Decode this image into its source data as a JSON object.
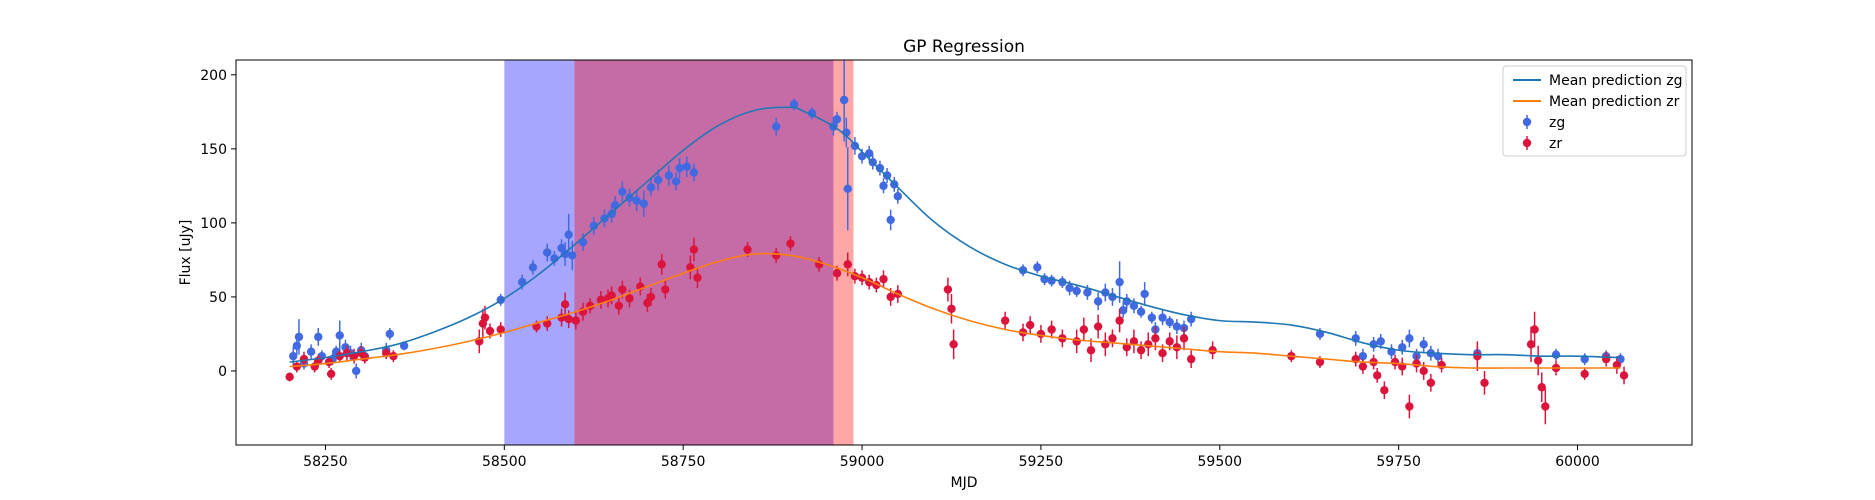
{
  "chart_data": {
    "type": "scatter",
    "title": "GP Regression",
    "xlabel": "MJD",
    "ylabel": "Flux [uJy]",
    "xlim": [
      58125,
      60160
    ],
    "ylim": [
      -50,
      210
    ],
    "xticks": [
      58250,
      58500,
      58750,
      59000,
      59250,
      59500,
      59750,
      60000
    ],
    "yticks": [
      0,
      50,
      100,
      150,
      200
    ],
    "grid": false,
    "legend": {
      "position": "top-right",
      "entries": [
        "Mean prediction zg",
        "Mean prediction zr",
        "zg",
        "zr"
      ]
    },
    "shaded_regions": [
      {
        "x_start": 58500,
        "x_end": 58960,
        "color": "#0000ff",
        "opacity": 0.35
      },
      {
        "x_start": 58598,
        "x_end": 58988,
        "color": "#ff0000",
        "opacity": 0.35
      }
    ],
    "series": [
      {
        "name": "Mean prediction zg",
        "kind": "line",
        "color": "#1f77b4",
        "x": [
          58200,
          58250,
          58300,
          58350,
          58400,
          58450,
          58500,
          58550,
          58600,
          58650,
          58700,
          58750,
          58800,
          58850,
          58900,
          58920,
          58950,
          58975,
          59000,
          59050,
          59100,
          59150,
          59200,
          59250,
          59300,
          59350,
          59400,
          59450,
          59500,
          59550,
          59600,
          59650,
          59700,
          59750,
          59800,
          59850,
          59900,
          59950,
          60000,
          60060
        ],
        "y": [
          6,
          9,
          13,
          18,
          26,
          36,
          49,
          66,
          86,
          107,
          128,
          149,
          166,
          176,
          178,
          175,
          168,
          160,
          148,
          124,
          101,
          84,
          72,
          64,
          58,
          51,
          44,
          38,
          34,
          33,
          31,
          26,
          19,
          14,
          12,
          11,
          11,
          10,
          10,
          9
        ]
      },
      {
        "name": "Mean prediction zr",
        "kind": "line",
        "color": "#ff7f0e",
        "x": [
          58200,
          58250,
          58300,
          58350,
          58400,
          58450,
          58500,
          58550,
          58600,
          58650,
          58700,
          58750,
          58800,
          58850,
          58900,
          58950,
          59000,
          59050,
          59100,
          59150,
          59200,
          59250,
          59300,
          59350,
          59400,
          59450,
          59500,
          59550,
          59600,
          59650,
          59700,
          59750,
          59800,
          59850,
          59900,
          59950,
          60000,
          60060
        ],
        "y": [
          3,
          5,
          8,
          11,
          15,
          20,
          26,
          33,
          40,
          48,
          57,
          66,
          74,
          79,
          78,
          72,
          63,
          52,
          42,
          34,
          28,
          24,
          21,
          19,
          17,
          15,
          13,
          12,
          10,
          8,
          6,
          5,
          3,
          2,
          2,
          2,
          2,
          2
        ]
      },
      {
        "name": "zg",
        "kind": "errorbar",
        "color": "#4169e1",
        "points": [
          [
            58205,
            10,
            6
          ],
          [
            58210,
            17,
            6
          ],
          [
            58213,
            23,
            12
          ],
          [
            58220,
            5,
            4
          ],
          [
            58230,
            13,
            5
          ],
          [
            58240,
            23,
            6
          ],
          [
            58245,
            10,
            4
          ],
          [
            58260,
            8,
            4
          ],
          [
            58265,
            13,
            4
          ],
          [
            58270,
            24,
            10
          ],
          [
            58278,
            16,
            5
          ],
          [
            58285,
            12,
            5
          ],
          [
            58293,
            0,
            5
          ],
          [
            58300,
            14,
            5
          ],
          [
            58305,
            10,
            4
          ],
          [
            58335,
            14,
            5
          ],
          [
            58340,
            25,
            4
          ],
          [
            58360,
            17,
            3
          ],
          [
            58495,
            48,
            4
          ],
          [
            58525,
            60,
            5
          ],
          [
            58540,
            70,
            5
          ],
          [
            58560,
            80,
            6
          ],
          [
            58570,
            76,
            5
          ],
          [
            58580,
            83,
            6
          ],
          [
            58585,
            79,
            8
          ],
          [
            58590,
            92,
            14
          ],
          [
            58595,
            78,
            10
          ],
          [
            58610,
            87,
            6
          ],
          [
            58625,
            98,
            6
          ],
          [
            58640,
            103,
            6
          ],
          [
            58650,
            106,
            6
          ],
          [
            58655,
            112,
            6
          ],
          [
            58665,
            121,
            7
          ],
          [
            58675,
            117,
            6
          ],
          [
            58685,
            115,
            7
          ],
          [
            58695,
            113,
            9
          ],
          [
            58705,
            124,
            6
          ],
          [
            58715,
            129,
            7
          ],
          [
            58730,
            132,
            7
          ],
          [
            58740,
            128,
            6
          ],
          [
            58745,
            137,
            7
          ],
          [
            58755,
            138,
            7
          ],
          [
            58765,
            134,
            6
          ],
          [
            58880,
            165,
            6
          ],
          [
            58905,
            180,
            4
          ],
          [
            58930,
            174,
            4
          ],
          [
            58960,
            165,
            6
          ],
          [
            58965,
            170,
            5
          ],
          [
            58975,
            183,
            28
          ],
          [
            58978,
            161,
            10
          ],
          [
            58980,
            123,
            28
          ],
          [
            58990,
            152,
            6
          ],
          [
            59000,
            145,
            5
          ],
          [
            59010,
            147,
            5
          ],
          [
            59015,
            141,
            5
          ],
          [
            59025,
            137,
            5
          ],
          [
            59030,
            125,
            5
          ],
          [
            59035,
            132,
            5
          ],
          [
            59040,
            102,
            7
          ],
          [
            59045,
            126,
            5
          ],
          [
            59050,
            118,
            5
          ],
          [
            59225,
            68,
            4
          ],
          [
            59245,
            70,
            4
          ],
          [
            59255,
            62,
            4
          ],
          [
            59265,
            61,
            4
          ],
          [
            59280,
            60,
            4
          ],
          [
            59290,
            56,
            5
          ],
          [
            59300,
            54,
            4
          ],
          [
            59315,
            53,
            5
          ],
          [
            59330,
            47,
            6
          ],
          [
            59340,
            53,
            6
          ],
          [
            59350,
            50,
            6
          ],
          [
            59360,
            60,
            14
          ],
          [
            59365,
            41,
            5
          ],
          [
            59370,
            47,
            5
          ],
          [
            59380,
            44,
            5
          ],
          [
            59390,
            40,
            4
          ],
          [
            59395,
            52,
            8
          ],
          [
            59405,
            36,
            4
          ],
          [
            59410,
            28,
            5
          ],
          [
            59420,
            36,
            5
          ],
          [
            59430,
            33,
            4
          ],
          [
            59440,
            30,
            5
          ],
          [
            59450,
            29,
            5
          ],
          [
            59460,
            35,
            5
          ],
          [
            59640,
            25,
            4
          ],
          [
            59690,
            22,
            5
          ],
          [
            59700,
            10,
            5
          ],
          [
            59715,
            18,
            5
          ],
          [
            59725,
            20,
            5
          ],
          [
            59740,
            13,
            5
          ],
          [
            59755,
            16,
            5
          ],
          [
            59765,
            22,
            6
          ],
          [
            59775,
            10,
            5
          ],
          [
            59785,
            18,
            5
          ],
          [
            59795,
            12,
            5
          ],
          [
            59805,
            10,
            5
          ],
          [
            59860,
            12,
            5
          ],
          [
            59970,
            11,
            4
          ],
          [
            60010,
            8,
            4
          ],
          [
            60040,
            10,
            4
          ],
          [
            60060,
            8,
            4
          ]
        ]
      },
      {
        "name": "zr",
        "kind": "errorbar",
        "color": "#dc143c",
        "points": [
          [
            58200,
            -4,
            3
          ],
          [
            58210,
            3,
            4
          ],
          [
            58220,
            8,
            5
          ],
          [
            58235,
            3,
            4
          ],
          [
            58240,
            7,
            4
          ],
          [
            58255,
            6,
            4
          ],
          [
            58258,
            -2,
            4
          ],
          [
            58270,
            10,
            4
          ],
          [
            58280,
            12,
            5
          ],
          [
            58290,
            10,
            5
          ],
          [
            58300,
            12,
            5
          ],
          [
            58305,
            9,
            4
          ],
          [
            58335,
            12,
            4
          ],
          [
            58345,
            10,
            4
          ],
          [
            58465,
            20,
            8
          ],
          [
            58470,
            32,
            10
          ],
          [
            58473,
            36,
            8
          ],
          [
            58480,
            27,
            5
          ],
          [
            58495,
            28,
            5
          ],
          [
            58545,
            30,
            4
          ],
          [
            58560,
            32,
            5
          ],
          [
            58580,
            36,
            6
          ],
          [
            58585,
            45,
            8
          ],
          [
            58590,
            35,
            6
          ],
          [
            58600,
            34,
            6
          ],
          [
            58610,
            40,
            6
          ],
          [
            58620,
            44,
            5
          ],
          [
            58635,
            48,
            6
          ],
          [
            58645,
            49,
            6
          ],
          [
            58650,
            51,
            6
          ],
          [
            58660,
            44,
            6
          ],
          [
            58665,
            55,
            6
          ],
          [
            58675,
            49,
            6
          ],
          [
            58690,
            57,
            6
          ],
          [
            58700,
            46,
            6
          ],
          [
            58705,
            50,
            6
          ],
          [
            58720,
            72,
            7
          ],
          [
            58725,
            55,
            6
          ],
          [
            58760,
            70,
            8
          ],
          [
            58765,
            82,
            8
          ],
          [
            58770,
            63,
            7
          ],
          [
            58840,
            82,
            5
          ],
          [
            58880,
            78,
            5
          ],
          [
            58900,
            86,
            5
          ],
          [
            58940,
            72,
            5
          ],
          [
            58965,
            66,
            5
          ],
          [
            58980,
            72,
            8
          ],
          [
            58990,
            64,
            5
          ],
          [
            59000,
            63,
            5
          ],
          [
            59010,
            60,
            5
          ],
          [
            59020,
            58,
            5
          ],
          [
            59030,
            62,
            6
          ],
          [
            59040,
            50,
            6
          ],
          [
            59050,
            52,
            6
          ],
          [
            59120,
            55,
            8
          ],
          [
            59125,
            42,
            10
          ],
          [
            59128,
            18,
            10
          ],
          [
            59200,
            34,
            6
          ],
          [
            59225,
            26,
            6
          ],
          [
            59235,
            31,
            6
          ],
          [
            59250,
            25,
            6
          ],
          [
            59265,
            28,
            6
          ],
          [
            59280,
            22,
            6
          ],
          [
            59300,
            20,
            8
          ],
          [
            59310,
            28,
            8
          ],
          [
            59320,
            14,
            8
          ],
          [
            59330,
            30,
            8
          ],
          [
            59340,
            18,
            8
          ],
          [
            59350,
            22,
            6
          ],
          [
            59360,
            34,
            8
          ],
          [
            59370,
            16,
            6
          ],
          [
            59380,
            20,
            8
          ],
          [
            59390,
            14,
            6
          ],
          [
            59400,
            18,
            8
          ],
          [
            59410,
            22,
            8
          ],
          [
            59420,
            12,
            6
          ],
          [
            59430,
            20,
            6
          ],
          [
            59440,
            16,
            8
          ],
          [
            59450,
            22,
            8
          ],
          [
            59460,
            8,
            6
          ],
          [
            59490,
            14,
            6
          ],
          [
            59600,
            10,
            4
          ],
          [
            59640,
            6,
            4
          ],
          [
            59690,
            8,
            5
          ],
          [
            59700,
            3,
            5
          ],
          [
            59715,
            6,
            5
          ],
          [
            59720,
            -3,
            5
          ],
          [
            59730,
            -13,
            6
          ],
          [
            59745,
            6,
            5
          ],
          [
            59755,
            3,
            6
          ],
          [
            59765,
            -24,
            8
          ],
          [
            59775,
            5,
            6
          ],
          [
            59785,
            0,
            6
          ],
          [
            59795,
            -8,
            6
          ],
          [
            59810,
            4,
            5
          ],
          [
            59860,
            10,
            10
          ],
          [
            59870,
            -8,
            8
          ],
          [
            59935,
            18,
            12
          ],
          [
            59940,
            28,
            12
          ],
          [
            59945,
            7,
            10
          ],
          [
            59950,
            -11,
            10
          ],
          [
            59955,
            -24,
            12
          ],
          [
            59970,
            2,
            5
          ],
          [
            60010,
            -2,
            4
          ],
          [
            60040,
            8,
            5
          ],
          [
            60055,
            4,
            6
          ],
          [
            60065,
            -3,
            6
          ]
        ]
      }
    ]
  }
}
